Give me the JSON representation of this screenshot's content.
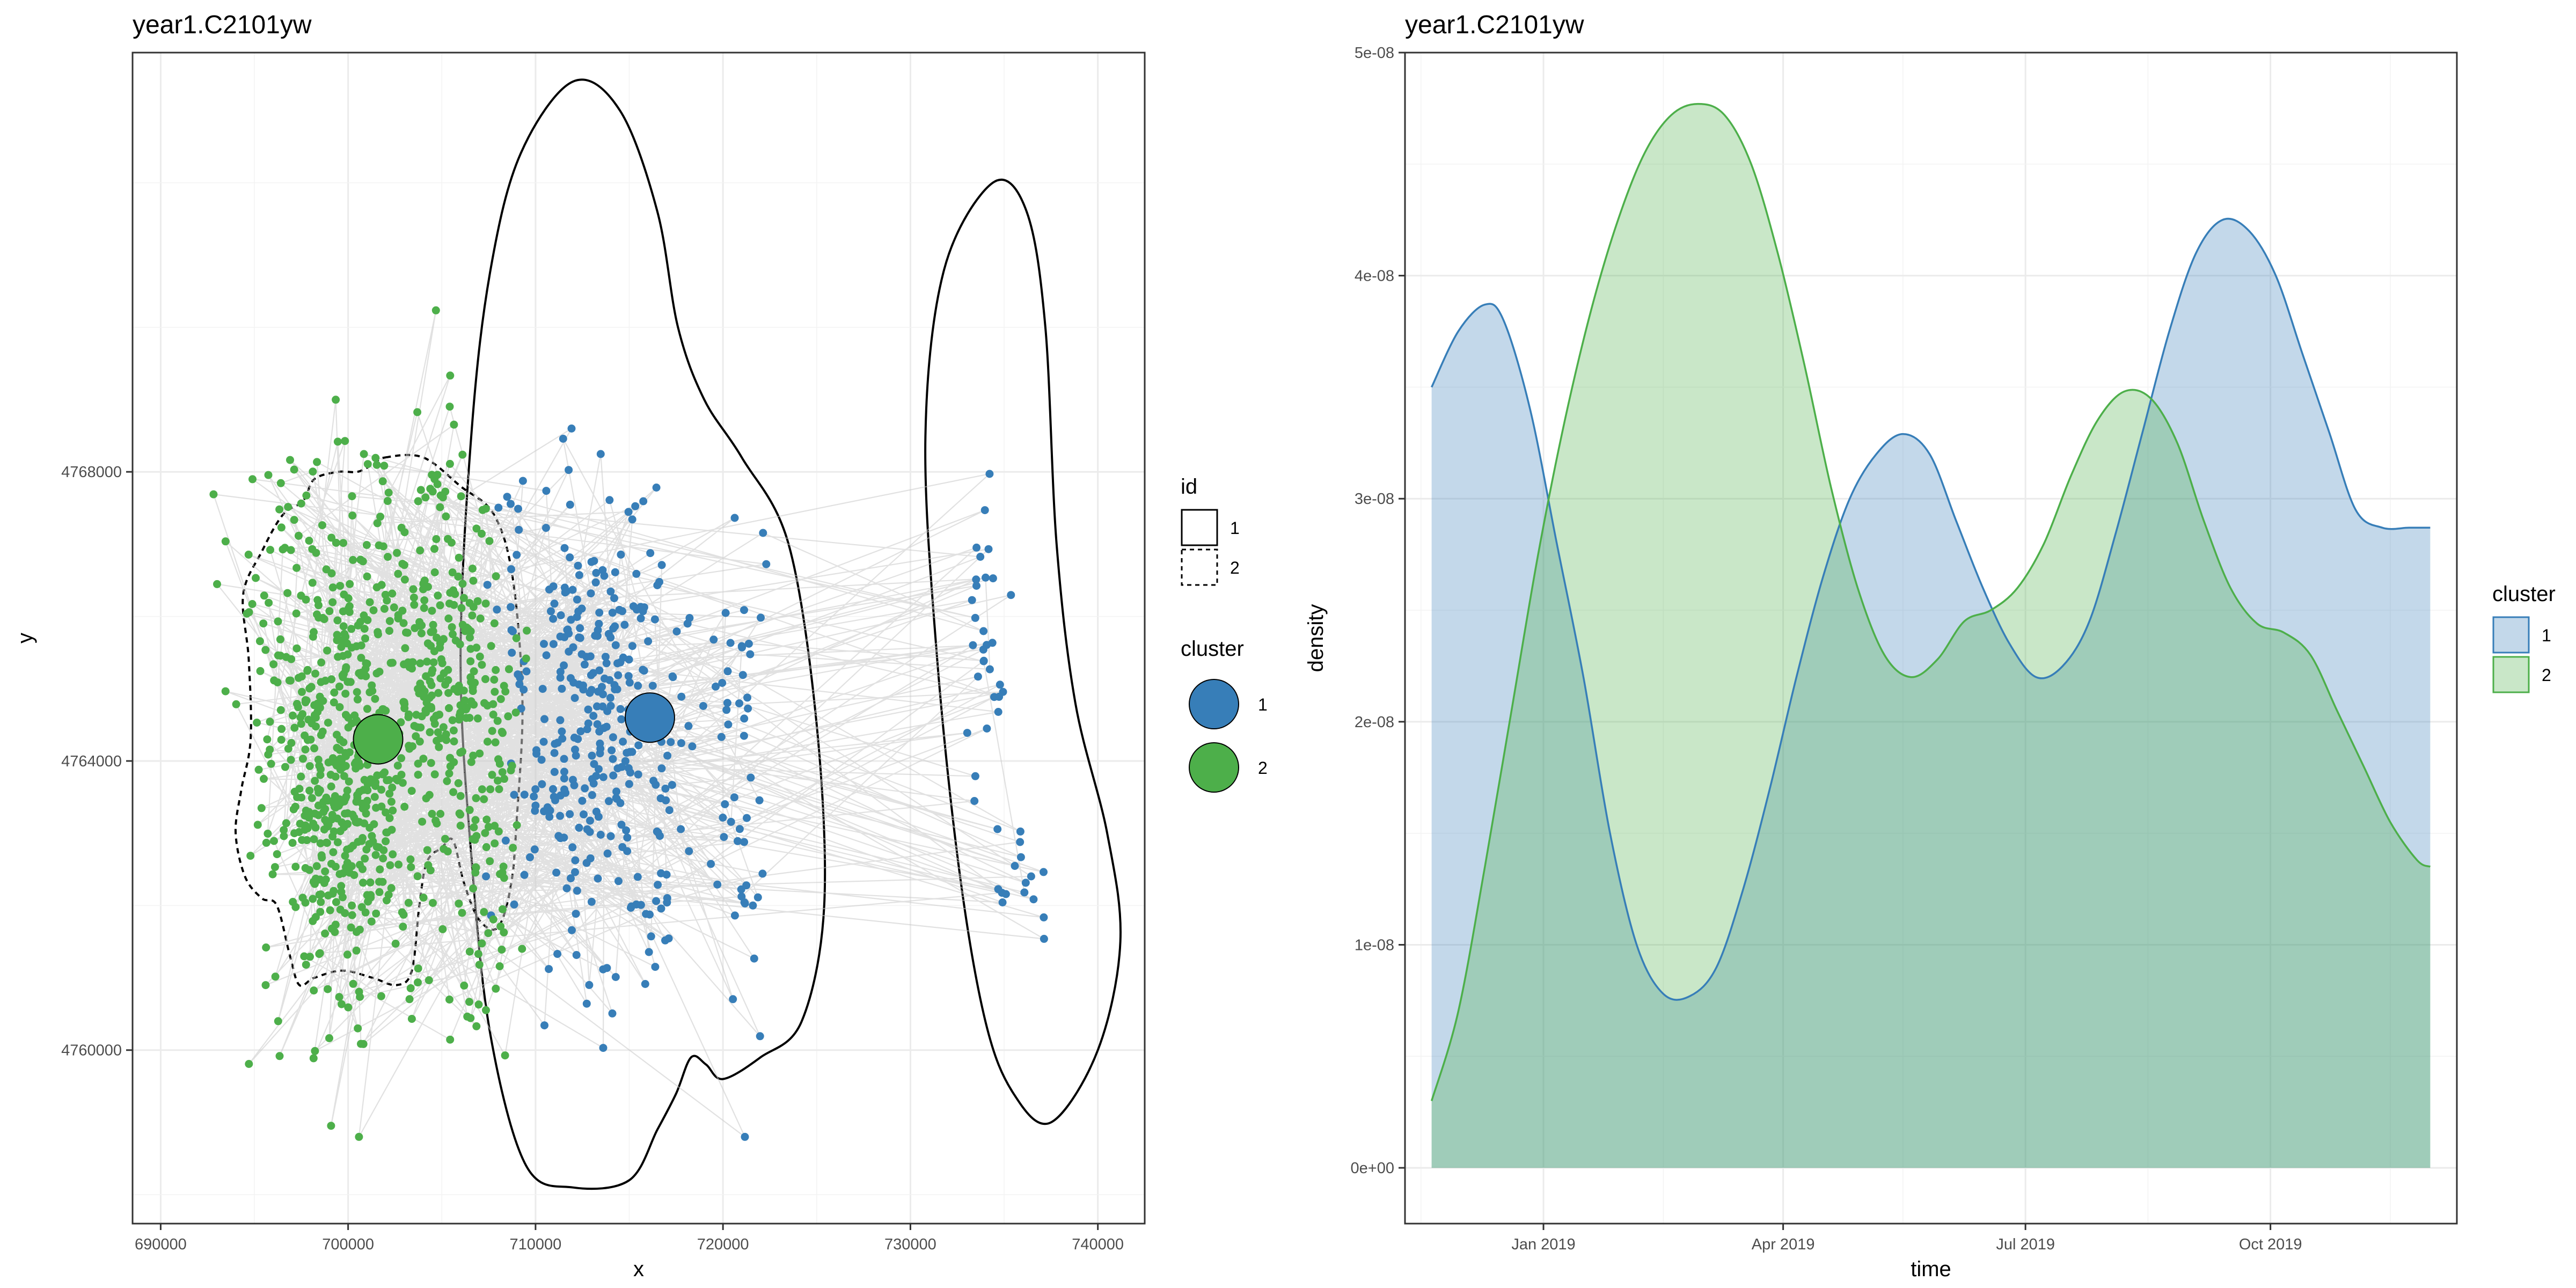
{
  "chart_data": [
    {
      "type": "scatter",
      "title": "year1.C2101yw",
      "xlabel": "x",
      "ylabel": "y",
      "xlim": [
        688500,
        742500
      ],
      "ylim": [
        4757600,
        4773800
      ],
      "x_ticks": [
        690000,
        700000,
        710000,
        720000,
        730000,
        740000
      ],
      "x_tick_labels": [
        "690000",
        "700000",
        "710000",
        "720000",
        "730000",
        "740000"
      ],
      "y_ticks": [
        4760000,
        4764000,
        4768000
      ],
      "y_tick_labels": [
        "4760000",
        "4764000",
        "4768000"
      ],
      "grid": true,
      "legend_id": {
        "title": "id",
        "entries": [
          "1",
          "2"
        ],
        "placement": "right"
      },
      "legend_cluster": {
        "title": "cluster",
        "entries": [
          "1",
          "2"
        ],
        "placement": "right"
      },
      "colors": {
        "cluster_1": "#377eb8",
        "cluster_2": "#4daf4a",
        "path": "#c8c8c8",
        "contour": "#000000"
      },
      "groups": [
        {
          "cluster": "1",
          "cx": 712500,
          "cy": 4764600,
          "sx": 2000,
          "sy": 1600,
          "n": 280
        },
        {
          "cluster": "1",
          "cx": 716200,
          "cy": 4763800,
          "sx": 1400,
          "sy": 1800,
          "n": 60
        },
        {
          "cluster": "1",
          "cx": 721000,
          "cy": 4764000,
          "sx": 700,
          "sy": 2000,
          "n": 50
        },
        {
          "cluster": "1",
          "cx": 734200,
          "cy": 4765900,
          "sx": 500,
          "sy": 900,
          "n": 30
        },
        {
          "cluster": "1",
          "cx": 736000,
          "cy": 4762400,
          "sx": 900,
          "sy": 400,
          "n": 16
        },
        {
          "cluster": "2",
          "cx": 699500,
          "cy": 4763700,
          "sx": 2000,
          "sy": 1500,
          "n": 470
        },
        {
          "cluster": "2",
          "cx": 704500,
          "cy": 4765100,
          "sx": 1800,
          "sy": 1700,
          "n": 300
        },
        {
          "cluster": "2",
          "cx": 698000,
          "cy": 4766500,
          "sx": 2800,
          "sy": 1000,
          "n": 60
        },
        {
          "cluster": "2",
          "cx": 707500,
          "cy": 4763500,
          "sx": 900,
          "sy": 1700,
          "n": 70
        }
      ],
      "centroids": [
        {
          "cluster": "1",
          "x": 716100,
          "y": 4764600
        },
        {
          "cluster": "2",
          "x": 701600,
          "y": 4764300
        }
      ],
      "contours": [
        {
          "id": "1",
          "points": [
            [
              712000,
              4773400
            ],
            [
              714500,
              4773000
            ],
            [
              716500,
              4771600
            ],
            [
              717600,
              4770000
            ],
            [
              719000,
              4769000
            ],
            [
              721000,
              4768200
            ],
            [
              723500,
              4767000
            ],
            [
              725000,
              4764500
            ],
            [
              725400,
              4762000
            ],
            [
              724200,
              4760400
            ],
            [
              722000,
              4759900
            ],
            [
              720000,
              4759600
            ],
            [
              719100,
              4759800
            ],
            [
              718300,
              4759900
            ],
            [
              717500,
              4759400
            ],
            [
              716500,
              4758900
            ],
            [
              715000,
              4758200
            ],
            [
              712000,
              4758100
            ],
            [
              709500,
              4758400
            ],
            [
              707600,
              4760200
            ],
            [
              706600,
              4762600
            ],
            [
              706000,
              4765400
            ],
            [
              706600,
              4768600
            ],
            [
              707600,
              4770800
            ],
            [
              709200,
              4772400
            ]
          ]
        },
        {
          "id": "1",
          "points": [
            [
              734400,
              4772000
            ],
            [
              736200,
              4771600
            ],
            [
              737200,
              4770000
            ],
            [
              737800,
              4767000
            ],
            [
              738800,
              4764800
            ],
            [
              740500,
              4763000
            ],
            [
              741200,
              4761500
            ],
            [
              740000,
              4760000
            ],
            [
              737500,
              4759000
            ],
            [
              735500,
              4759400
            ],
            [
              734000,
              4760400
            ],
            [
              732600,
              4762500
            ],
            [
              731400,
              4765500
            ],
            [
              730800,
              4768500
            ],
            [
              731800,
              4770800
            ]
          ]
        },
        {
          "id": "2",
          "points": [
            [
              702000,
              4768200
            ],
            [
              704000,
              4768200
            ],
            [
              706000,
              4767800
            ],
            [
              707800,
              4767400
            ],
            [
              708800,
              4766500
            ],
            [
              709300,
              4764800
            ],
            [
              709000,
              4763200
            ],
            [
              708700,
              4762300
            ],
            [
              708000,
              4761700
            ],
            [
              707000,
              4761800
            ],
            [
              706200,
              4762300
            ],
            [
              705600,
              4762900
            ],
            [
              705000,
              4762800
            ],
            [
              704200,
              4762600
            ],
            [
              703800,
              4762000
            ],
            [
              703400,
              4761100
            ],
            [
              702600,
              4760900
            ],
            [
              701300,
              4761000
            ],
            [
              699700,
              4761100
            ],
            [
              698200,
              4761000
            ],
            [
              697400,
              4760900
            ],
            [
              696900,
              4761300
            ],
            [
              696200,
              4762000
            ],
            [
              695400,
              4762100
            ],
            [
              694500,
              4762400
            ],
            [
              694000,
              4763000
            ],
            [
              694300,
              4763600
            ],
            [
              694800,
              4764300
            ],
            [
              694700,
              4765400
            ],
            [
              694400,
              4766300
            ],
            [
              695400,
              4766900
            ],
            [
              696500,
              4767400
            ],
            [
              697600,
              4767600
            ],
            [
              698200,
              4767900
            ],
            [
              699500,
              4768000
            ],
            [
              700500,
              4768000
            ],
            [
              701300,
              4768100
            ]
          ]
        }
      ]
    },
    {
      "type": "area",
      "title": "year1.C2101yw",
      "xlabel": "time",
      "ylabel": "density",
      "x_ticks": [
        "2019-01-01",
        "2019-04-01",
        "2019-07-01",
        "2019-10-01"
      ],
      "x_tick_labels": [
        "Jan 2019",
        "Apr 2019",
        "Jul 2019",
        "Oct 2019"
      ],
      "xlim": [
        "2018-11-10",
        "2019-12-10"
      ],
      "ylim": [
        -2.5e-09,
        5e-08
      ],
      "y_ticks": [
        0,
        1e-08,
        2e-08,
        3e-08,
        4e-08,
        5e-08
      ],
      "y_tick_labels": [
        "0e+00",
        "1e-08",
        "2e-08",
        "3e-08",
        "4e-08",
        "5e-08"
      ],
      "grid": true,
      "legend": {
        "title": "cluster",
        "entries": [
          "1",
          "2"
        ],
        "placement": "right"
      },
      "colors": {
        "cluster_1": "#377eb8",
        "cluster_2": "#4daf4a"
      },
      "series": [
        {
          "name": "1",
          "x": [
            "2018-11-20",
            "2018-11-30",
            "2018-12-10",
            "2018-12-17",
            "2018-12-27",
            "2019-01-06",
            "2019-01-16",
            "2019-01-26",
            "2019-02-05",
            "2019-02-15",
            "2019-02-25",
            "2019-03-07",
            "2019-03-17",
            "2019-03-27",
            "2019-04-06",
            "2019-04-16",
            "2019-04-26",
            "2019-05-06",
            "2019-05-16",
            "2019-05-26",
            "2019-06-05",
            "2019-06-15",
            "2019-06-25",
            "2019-07-05",
            "2019-07-15",
            "2019-07-25",
            "2019-08-04",
            "2019-08-14",
            "2019-08-24",
            "2019-09-03",
            "2019-09-13",
            "2019-09-23",
            "2019-10-03",
            "2019-10-13",
            "2019-10-23",
            "2019-11-02",
            "2019-11-12",
            "2019-11-22",
            "2019-11-30"
          ],
          "values": [
            3.5e-08,
            3.75e-08,
            3.87e-08,
            3.8e-08,
            3.4e-08,
            2.8e-08,
            2.2e-08,
            1.5e-08,
            1e-08,
            7.8e-09,
            7.7e-09,
            9e-09,
            1.25e-08,
            1.7e-08,
            2.2e-08,
            2.65e-08,
            3e-08,
            3.2e-08,
            3.29e-08,
            3.2e-08,
            2.9e-08,
            2.6e-08,
            2.35e-08,
            2.2e-08,
            2.25e-08,
            2.45e-08,
            2.85e-08,
            3.3e-08,
            3.75e-08,
            4.1e-08,
            4.25e-08,
            4.2e-08,
            4e-08,
            3.65e-08,
            3.3e-08,
            2.95e-08,
            2.87e-08,
            2.87e-08,
            2.87e-08
          ]
        },
        {
          "name": "2",
          "x": [
            "2018-11-20",
            "2018-11-30",
            "2018-12-10",
            "2018-12-20",
            "2018-12-30",
            "2019-01-09",
            "2019-01-19",
            "2019-01-29",
            "2019-02-08",
            "2019-02-18",
            "2019-02-28",
            "2019-03-10",
            "2019-03-20",
            "2019-03-30",
            "2019-04-09",
            "2019-04-19",
            "2019-04-29",
            "2019-05-09",
            "2019-05-19",
            "2019-05-29",
            "2019-06-08",
            "2019-06-18",
            "2019-06-28",
            "2019-07-08",
            "2019-07-18",
            "2019-07-28",
            "2019-08-07",
            "2019-08-17",
            "2019-08-27",
            "2019-09-06",
            "2019-09-16",
            "2019-09-26",
            "2019-10-06",
            "2019-10-16",
            "2019-10-26",
            "2019-11-05",
            "2019-11-15",
            "2019-11-25",
            "2019-11-30"
          ],
          "values": [
            3e-09,
            7e-09,
            1.35e-08,
            2.05e-08,
            2.75e-08,
            3.35e-08,
            3.85e-08,
            4.25e-08,
            4.55e-08,
            4.72e-08,
            4.77e-08,
            4.72e-08,
            4.5e-08,
            4.1e-08,
            3.6e-08,
            3.05e-08,
            2.6e-08,
            2.3e-08,
            2.2e-08,
            2.28e-08,
            2.45e-08,
            2.5e-08,
            2.6e-08,
            2.8e-08,
            3.1e-08,
            3.35e-08,
            3.48e-08,
            3.45e-08,
            3.25e-08,
            2.9e-08,
            2.6e-08,
            2.44e-08,
            2.4e-08,
            2.3e-08,
            2.05e-08,
            1.8e-08,
            1.55e-08,
            1.38e-08,
            1.35e-08
          ]
        }
      ]
    }
  ]
}
